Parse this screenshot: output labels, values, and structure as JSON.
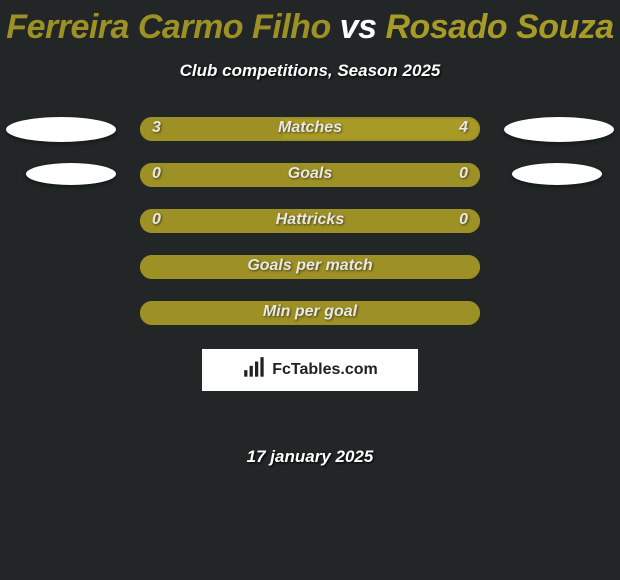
{
  "colors": {
    "background": "#222626",
    "playerA": "#9d9024",
    "playerB": "#a89a26",
    "barBorder": "#9d9024",
    "barFillWhenZero": "#9d9024"
  },
  "title": {
    "playerA": "Ferreira Carmo Filho",
    "vs": "vs",
    "playerB": "Rosado Souza",
    "colorA": "#9d9024",
    "vsColor": "#ffffff",
    "colorB": "#a89a26"
  },
  "subtitle": "Club competitions, Season 2025",
  "avatars": {
    "row0": {
      "leftTop": 0,
      "rightTop": 0
    },
    "row1": {
      "leftTop": 0,
      "rightTop": 0
    }
  },
  "rows": [
    {
      "label": "Matches",
      "left": "3",
      "right": "4",
      "leftPct": 42,
      "rightPct": 58,
      "showValues": true,
      "showAvatars": true
    },
    {
      "label": "Goals",
      "left": "0",
      "right": "0",
      "leftPct": 100,
      "rightPct": 0,
      "showValues": true,
      "showAvatars": true
    },
    {
      "label": "Hattricks",
      "left": "0",
      "right": "0",
      "leftPct": 100,
      "rightPct": 0,
      "showValues": true,
      "showAvatars": false
    },
    {
      "label": "Goals per match",
      "left": "",
      "right": "",
      "leftPct": 100,
      "rightPct": 0,
      "showValues": false,
      "showAvatars": false
    },
    {
      "label": "Min per goal",
      "left": "",
      "right": "",
      "leftPct": 100,
      "rightPct": 0,
      "showValues": false,
      "showAvatars": false
    }
  ],
  "site": {
    "name": "FcTables.com"
  },
  "date": "17 january 2025"
}
